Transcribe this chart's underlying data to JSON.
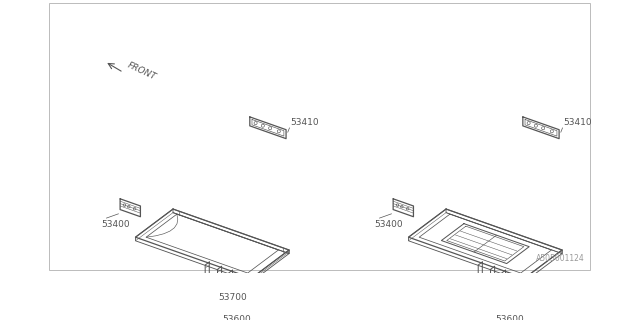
{
  "bg_color": "#ffffff",
  "lc": "#555555",
  "lw": 0.9,
  "watermark": "A505001124",
  "fig_width": 6.4,
  "fig_height": 3.2,
  "dpi": 100
}
